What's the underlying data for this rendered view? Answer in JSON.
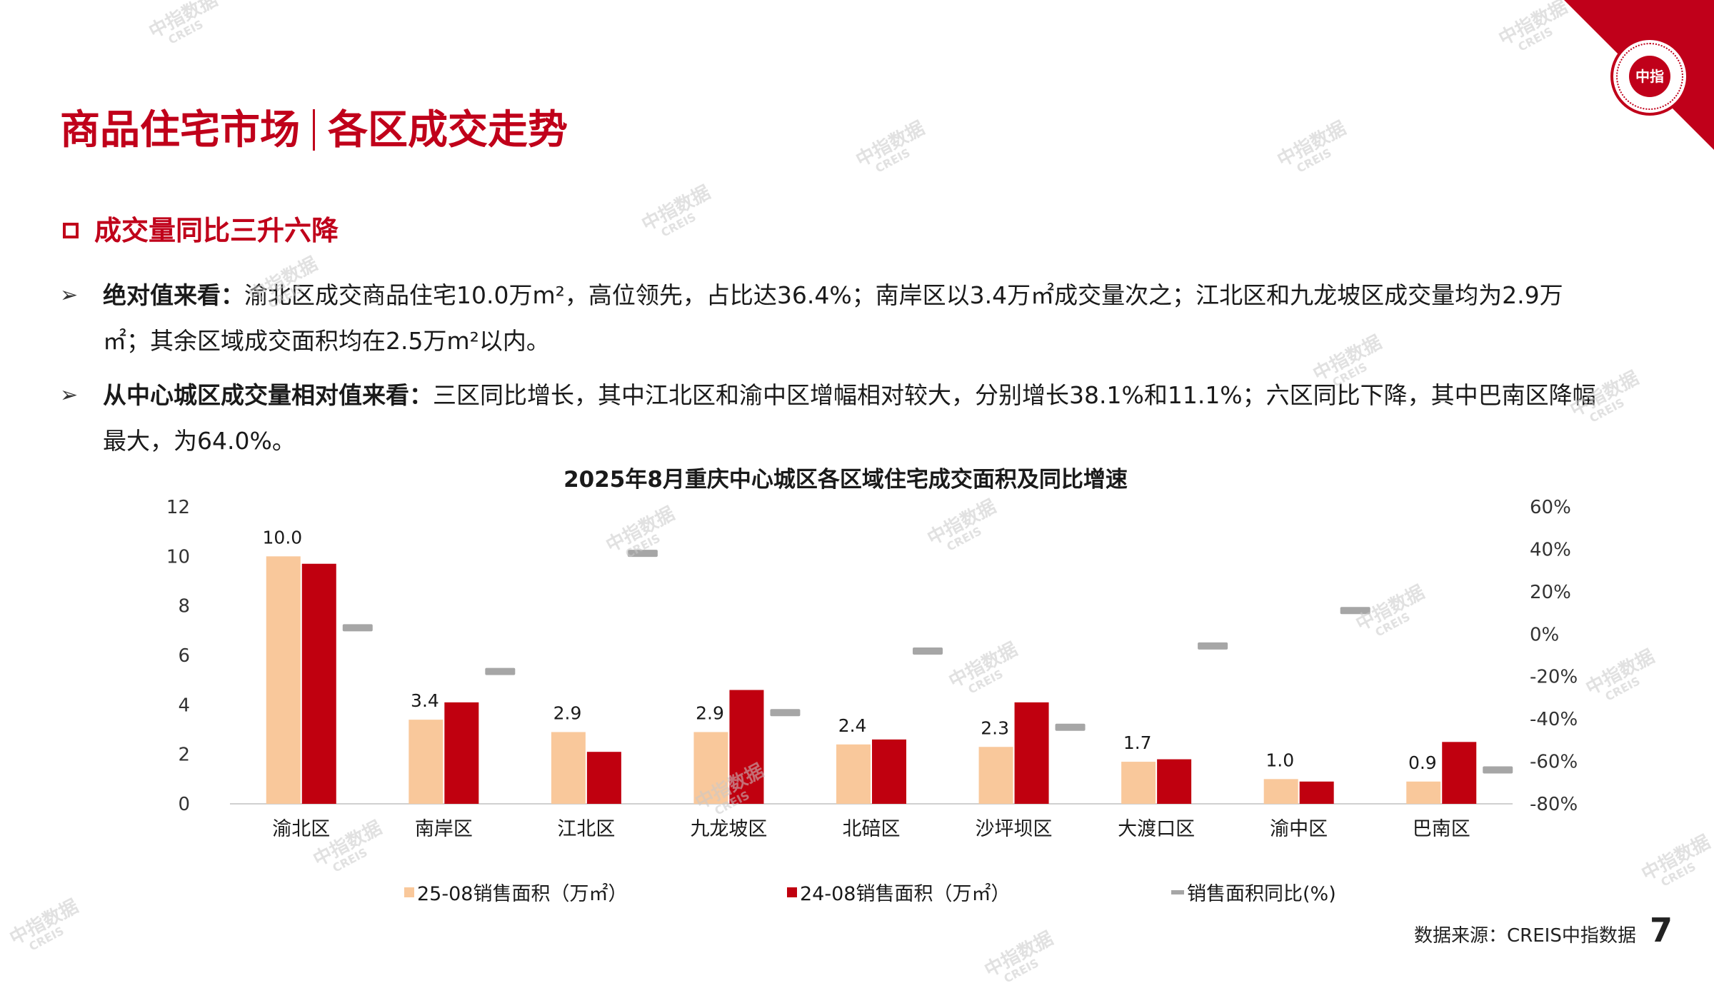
{
  "header": {
    "title_left": "商品住宅市场",
    "title_right": "各区成交走势"
  },
  "section_heading": "成交量同比三升六降",
  "bullets": [
    {
      "bold": "绝对值来看：",
      "text": "渝北区成交商品住宅10.0万m²，高位领先，占比达36.4%；南岸区以3.4万㎡成交量次之；江北区和九龙坡区成交量均为2.9万㎡；其余区域成交面积均在2.5万m²以内。"
    },
    {
      "bold": "从中心城区成交量相对值来看：",
      "text": "三区同比增长，其中江北区和渝中区增幅相对较大，分别增长38.1%和11.1%；六区同比下降，其中巴南区降幅最大，为64.0%。"
    }
  ],
  "watermark": {
    "cn": "中指数据",
    "en": "CREIS"
  },
  "logo": {
    "text": "中指"
  },
  "chart_data": {
    "type": "bar",
    "title": "2025年8月重庆中心城区各区域住宅成交面积及同比增速",
    "categories": [
      "渝北区",
      "南岸区",
      "江北区",
      "九龙坡区",
      "北碚区",
      "沙坪坝区",
      "大渡口区",
      "渝中区",
      "巴南区"
    ],
    "series": [
      {
        "name": "25-08销售面积（万㎡）",
        "axis": "left",
        "color": "#f9c89b",
        "values": [
          10.0,
          3.4,
          2.9,
          2.9,
          2.4,
          2.3,
          1.7,
          1.0,
          0.9
        ]
      },
      {
        "name": "24-08销售面积（万㎡）",
        "axis": "left",
        "color": "#c0000f",
        "values": [
          9.7,
          4.1,
          2.1,
          4.6,
          2.6,
          4.1,
          1.8,
          0.9,
          2.5
        ]
      },
      {
        "name": "销售面积同比(%)",
        "axis": "right",
        "color": "#a6a6a6",
        "marker": "dash",
        "values": [
          3,
          -17.6,
          38.1,
          -37.0,
          -8.0,
          -43.9,
          -5.6,
          11.1,
          -64.0
        ]
      }
    ],
    "data_labels": [
      "10.0",
      "3.4",
      "2.9",
      "2.9",
      "2.4",
      "2.3",
      "1.7",
      "1.0",
      "0.9"
    ],
    "y_left": {
      "min": 0,
      "max": 12,
      "ticks": [
        "0",
        "2",
        "4",
        "6",
        "8",
        "10",
        "12"
      ]
    },
    "y_right": {
      "min": -80,
      "max": 60,
      "ticks": [
        "-80%",
        "-60%",
        "-40%",
        "-20%",
        "0%",
        "20%",
        "40%",
        "60%"
      ]
    },
    "grid": false,
    "legend": "bottom"
  },
  "footer": {
    "source": "数据来源：CREIS中指数据",
    "page": "7"
  }
}
